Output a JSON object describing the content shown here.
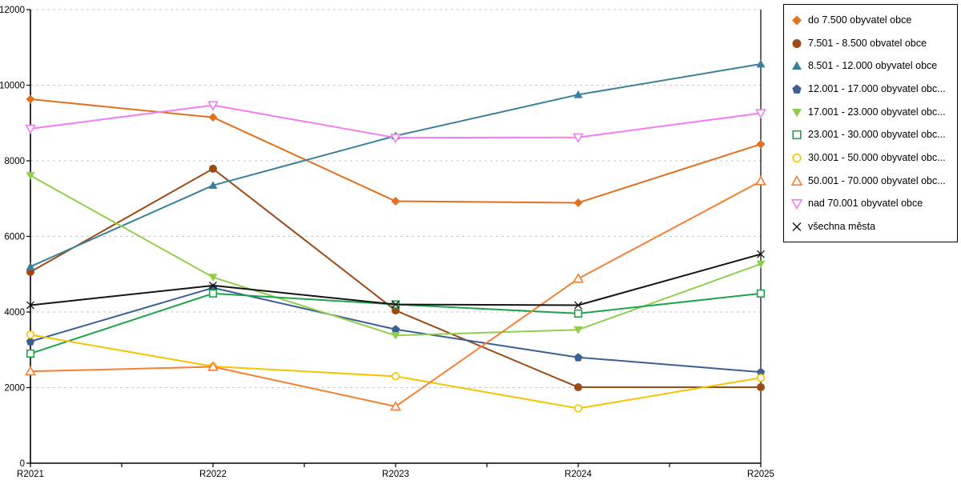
{
  "chart_data": {
    "type": "line",
    "title": "",
    "xlabel": "",
    "ylabel": "",
    "x_categories": [
      "R2021",
      "R2022",
      "R2023",
      "R2024",
      "R2025"
    ],
    "ylim": [
      0,
      12000
    ],
    "y_ticks": [
      0,
      2000,
      4000,
      6000,
      8000,
      10000,
      12000
    ],
    "grid": "horizontal-dashed",
    "legend_position": "top-right-outside",
    "axis_color": "#000000",
    "gridline_color": "#c6c6c6",
    "series": [
      {
        "name": "do 7.500 obyvatel obce",
        "marker": "diamond-filled",
        "color": "#e0711f",
        "values": [
          9630,
          9150,
          6930,
          6890,
          8440
        ]
      },
      {
        "name": "7.501 - 8.500 obvatel obce",
        "marker": "circle-filled",
        "color": "#9c4a16",
        "values": [
          5060,
          7790,
          4040,
          2010,
          2010
        ]
      },
      {
        "name": "8.501 - 12.000 obyvatel obce",
        "marker": "triangle-up-filled",
        "color": "#39809c",
        "values": [
          5200,
          7350,
          8660,
          9750,
          10560
        ]
      },
      {
        "name": "12.001 - 17.000 obyvatel obc...",
        "marker": "pentagon-filled",
        "color": "#3a6094",
        "values": [
          3220,
          4640,
          3540,
          2800,
          2410
        ]
      },
      {
        "name": "17.001 - 23.000 obyvatel obc...",
        "marker": "triangle-down-filled",
        "color": "#92ce4e",
        "values": [
          7610,
          4920,
          3380,
          3530,
          5270
        ]
      },
      {
        "name": "23.001 - 30.000 obyvatel obc...",
        "marker": "square-hollow",
        "color": "#1fa34c",
        "values": [
          2900,
          4490,
          4200,
          3960,
          4490
        ]
      },
      {
        "name": "30.001 - 50.000 obyvatel obc...",
        "marker": "circle-hollow",
        "color": "#f3c400",
        "values": [
          3400,
          2560,
          2300,
          1450,
          2260
        ]
      },
      {
        "name": "50.001 - 70.000 obyvatel obc...",
        "marker": "triangle-up-hollow",
        "color": "#f57f33",
        "values": [
          2430,
          2550,
          1500,
          4880,
          7460
        ]
      },
      {
        "name": "nad 70.001 obyvatel obce",
        "marker": "triangle-down-hollow",
        "color": "#f27cf2",
        "values": [
          8850,
          9470,
          8610,
          8620,
          9260
        ]
      },
      {
        "name": "všechna města",
        "marker": "x-cross",
        "color": "#141414",
        "values": [
          4180,
          4700,
          4200,
          4180,
          5530
        ]
      }
    ]
  }
}
